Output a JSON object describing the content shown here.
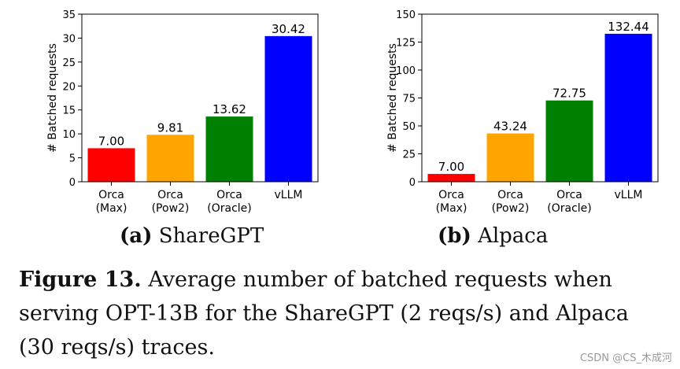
{
  "chart_data": [
    {
      "type": "bar",
      "categories": [
        "Orca\n(Max)",
        "Orca\n(Pow2)",
        "Orca\n(Oracle)",
        "vLLM"
      ],
      "values": [
        7.0,
        9.81,
        13.62,
        30.42
      ],
      "value_labels": [
        "7.00",
        "9.81",
        "13.62",
        "30.42"
      ],
      "colors": [
        "#ff0000",
        "#ffa500",
        "#008000",
        "#0000ff"
      ],
      "ylabel": "# Batched requests",
      "ylim": [
        0,
        35
      ],
      "yticks": [
        0,
        5,
        10,
        15,
        20,
        25,
        30,
        35
      ],
      "subcaption_tag": "(a)",
      "subcaption_text": "ShareGPT"
    },
    {
      "type": "bar",
      "categories": [
        "Orca\n(Max)",
        "Orca\n(Pow2)",
        "Orca\n(Oracle)",
        "vLLM"
      ],
      "values": [
        7.0,
        43.24,
        72.75,
        132.44
      ],
      "value_labels": [
        "7.00",
        "43.24",
        "72.75",
        "132.44"
      ],
      "colors": [
        "#ff0000",
        "#ffa500",
        "#008000",
        "#0000ff"
      ],
      "ylabel": "# Batched requests",
      "ylim": [
        0,
        150
      ],
      "yticks": [
        0,
        25,
        50,
        75,
        100,
        125,
        150
      ],
      "subcaption_tag": "(b)",
      "subcaption_text": "Alpaca"
    }
  ],
  "caption": {
    "label": "Figure 13.",
    "text": "Average number of batched requests when serving OPT-13B for the ShareGPT (2 reqs/s) and Alpaca (30 reqs/s) traces."
  },
  "watermark": "CSDN @CS_木成河"
}
